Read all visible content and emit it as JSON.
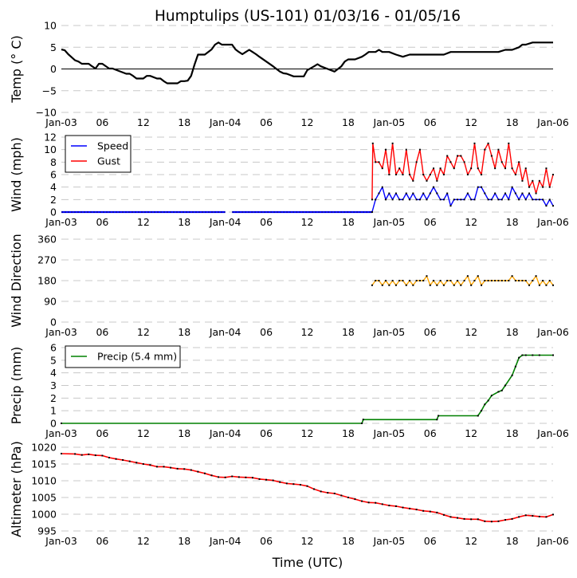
{
  "title": "Humptulips (US-101) 01/03/16 - 01/05/16",
  "xlabel": "Time (UTC)",
  "x_tick_labels": [
    "Jan-03",
    "06",
    "12",
    "18",
    "Jan-04",
    "06",
    "12",
    "18",
    "Jan-05",
    "06",
    "12",
    "18",
    "Jan-06"
  ],
  "colors": {
    "temp": "#000000",
    "speed": "#0000ff",
    "gust": "#ff0000",
    "direction": "#ffa500",
    "precip": "#008000",
    "altimeter": "#ff0000",
    "marker": "#000000",
    "grid": "#c8c8c8"
  },
  "chart_data": [
    {
      "type": "line",
      "id": "temp",
      "ylabel": "Temp ($^\\circ$C)",
      "ylabel_display": "Temp (° C)",
      "ylim": [
        -10,
        10
      ],
      "yticks": [
        -10,
        -5,
        0,
        5,
        10
      ],
      "ytick_labels": [
        "−10",
        "−5",
        "0",
        "5",
        "10"
      ],
      "xlim_hours": [
        0,
        72
      ],
      "zero_line": true,
      "series": [
        {
          "name": "Temperature",
          "x_hours": [
            0,
            0.5,
            1,
            1.5,
            2,
            2.5,
            3,
            4,
            4.5,
            5,
            5.5,
            6,
            7,
            7.5,
            8,
            9,
            9.5,
            10,
            10.5,
            11,
            12,
            12.5,
            13,
            14,
            14.5,
            15,
            15.5,
            16,
            17,
            17.5,
            18,
            18.5,
            19,
            19.5,
            20,
            20.5,
            21,
            22,
            22.5,
            23,
            23.5,
            24,
            24.5,
            25,
            25.5,
            26,
            26.5,
            27,
            27.5,
            28,
            28.5,
            29,
            30,
            31,
            31.5,
            32,
            32.5,
            33,
            34,
            35,
            35.5,
            36,
            37,
            37.5,
            38,
            39,
            40,
            41,
            41.5,
            42,
            43,
            44,
            44.5,
            45,
            46,
            46.5,
            47,
            47.5,
            48,
            49,
            50,
            51,
            52,
            53,
            54,
            55,
            56,
            57,
            58,
            59,
            60,
            61,
            62,
            63,
            64,
            65,
            65.5,
            66,
            67,
            67.5,
            68,
            69,
            70,
            71,
            72
          ],
          "values": [
            4.5,
            4.3,
            3.4,
            2.7,
            2.0,
            1.7,
            1.2,
            1.2,
            0.6,
            0.1,
            1.2,
            1.2,
            0.1,
            0.1,
            -0.2,
            -0.8,
            -1.1,
            -1.1,
            -1.6,
            -2.2,
            -2.2,
            -1.6,
            -1.6,
            -2.2,
            -2.2,
            -2.8,
            -3.3,
            -3.3,
            -3.3,
            -2.8,
            -2.8,
            -2.7,
            -1.6,
            1.0,
            3.3,
            3.3,
            3.3,
            4.5,
            5.6,
            6.1,
            5.6,
            5.6,
            5.6,
            5.6,
            4.5,
            3.9,
            3.4,
            3.9,
            4.4,
            3.9,
            3.4,
            2.8,
            1.7,
            0.6,
            0.0,
            -0.6,
            -1.0,
            -1.1,
            -1.7,
            -1.7,
            -1.7,
            -0.3,
            0.6,
            1.1,
            0.6,
            0.0,
            -0.6,
            0.6,
            1.7,
            2.2,
            2.2,
            2.8,
            3.3,
            3.9,
            3.9,
            4.4,
            3.9,
            3.9,
            3.9,
            3.3,
            2.8,
            3.3,
            3.3,
            3.3,
            3.3,
            3.3,
            3.3,
            3.9,
            3.9,
            3.9,
            3.9,
            3.9,
            3.9,
            3.9,
            3.9,
            4.4,
            4.4,
            4.4,
            5.0,
            5.6,
            5.6,
            6.1,
            6.1,
            6.1,
            6.1
          ]
        }
      ]
    },
    {
      "type": "line",
      "id": "wind",
      "ylabel": "Wind (mph)",
      "ylim": [
        0,
        12
      ],
      "yticks": [
        0,
        2,
        4,
        6,
        8,
        10,
        12
      ],
      "ytick_labels": [
        "0",
        "2",
        "4",
        "6",
        "8",
        "10",
        "12"
      ],
      "xlim_hours": [
        0,
        72
      ],
      "legend": {
        "position": "upper-left",
        "entries": [
          "Speed",
          "Gust"
        ]
      },
      "series": [
        {
          "name": "Speed",
          "segments": [
            {
              "x_hours": [
                0,
                24
              ],
              "values": [
                0,
                0
              ]
            },
            {
              "x_hours": [
                25,
                45.5
              ],
              "values": [
                0,
                0
              ]
            }
          ],
          "x_hours": [
            45.5,
            46,
            46.5,
            47,
            47.5,
            48,
            48.5,
            49,
            49.5,
            50,
            50.5,
            51,
            51.5,
            52,
            52.5,
            53,
            53.5,
            54,
            54.5,
            55,
            55.5,
            56,
            56.5,
            57,
            57.5,
            58,
            58.5,
            59,
            59.5,
            60,
            60.5,
            61,
            61.5,
            62,
            62.5,
            63,
            63.5,
            64,
            64.5,
            65,
            65.5,
            66,
            66.5,
            67,
            67.5,
            68,
            68.5,
            69,
            69.5,
            70,
            70.5,
            71,
            71.5,
            72
          ],
          "values": [
            0,
            2,
            3,
            4,
            2,
            3,
            2,
            3,
            2,
            2,
            3,
            2,
            3,
            2,
            2,
            3,
            2,
            3,
            4,
            3,
            2,
            2,
            3,
            1,
            2,
            2,
            2,
            2,
            3,
            2,
            2,
            4,
            4,
            3,
            2,
            2,
            3,
            2,
            2,
            3,
            2,
            4,
            3,
            2,
            3,
            2,
            3,
            2,
            2,
            2,
            2,
            1,
            2,
            1
          ]
        },
        {
          "name": "Gust",
          "x_hours": [
            45.5,
            45.6,
            46,
            46.5,
            47,
            47.5,
            48,
            48.5,
            49,
            49.5,
            50,
            50.5,
            51,
            51.5,
            52,
            52.5,
            53,
            53.5,
            54,
            54.5,
            55,
            55.5,
            56,
            56.5,
            57,
            57.5,
            58,
            58.5,
            59,
            59.5,
            60,
            60.5,
            61,
            61.5,
            62,
            62.5,
            63,
            63.5,
            64,
            64.5,
            65,
            65.5,
            66,
            66.5,
            67,
            67.5,
            68,
            68.5,
            69,
            69.5,
            70,
            70.5,
            71,
            71.5,
            72
          ],
          "values": [
            2,
            11,
            8,
            8,
            7,
            10,
            6,
            11,
            6,
            7,
            6,
            10,
            6,
            5,
            8,
            10,
            6,
            5,
            6,
            7,
            5,
            7,
            6,
            9,
            8,
            7,
            9,
            9,
            8,
            6,
            7,
            11,
            7,
            6,
            10,
            11,
            9,
            7,
            10,
            8,
            7,
            11,
            7,
            6,
            8,
            5,
            7,
            4,
            5,
            3,
            5,
            4,
            7,
            4,
            6
          ]
        }
      ]
    },
    {
      "type": "line",
      "id": "direction",
      "ylabel": "Wind Direction",
      "ylim": [
        0,
        360
      ],
      "yticks": [
        0,
        90,
        180,
        270,
        360
      ],
      "ytick_labels": [
        "0",
        "90",
        "180",
        "270",
        "360"
      ],
      "xlim_hours": [
        0,
        72
      ],
      "series": [
        {
          "name": "Direction",
          "x_hours": [
            45.5,
            46,
            46.5,
            47,
            47.5,
            48,
            48.5,
            49,
            49.5,
            50,
            50.5,
            51,
            51.5,
            52,
            52.5,
            53,
            53.5,
            54,
            54.5,
            55,
            55.5,
            56,
            56.5,
            57,
            57.5,
            58,
            58.5,
            59,
            59.5,
            60,
            60.5,
            61,
            61.5,
            62,
            62.5,
            63,
            63.5,
            64,
            64.5,
            65,
            65.5,
            66,
            66.5,
            67,
            67.5,
            68,
            68.5,
            69,
            69.5,
            70,
            70.5,
            71,
            71.5,
            72
          ],
          "values": [
            160,
            180,
            180,
            160,
            180,
            160,
            180,
            160,
            180,
            180,
            160,
            180,
            160,
            180,
            180,
            180,
            200,
            160,
            180,
            160,
            180,
            160,
            180,
            180,
            160,
            180,
            160,
            180,
            200,
            160,
            180,
            200,
            160,
            180,
            180,
            180,
            180,
            180,
            180,
            180,
            180,
            200,
            180,
            180,
            180,
            180,
            160,
            180,
            200,
            160,
            180,
            160,
            180,
            160
          ]
        }
      ]
    },
    {
      "type": "line",
      "id": "precip",
      "ylabel": "Precip (mm)",
      "ylim": [
        0,
        6
      ],
      "yticks": [
        0,
        1,
        2,
        3,
        4,
        5,
        6
      ],
      "ytick_labels": [
        "0",
        "1",
        "2",
        "3",
        "4",
        "5",
        "6"
      ],
      "xlim_hours": [
        0,
        72
      ],
      "legend": {
        "position": "upper-left",
        "entries": [
          "Precip (5.4 mm)"
        ]
      },
      "total_mm": 5.4,
      "series": [
        {
          "name": "Precip (5.4 mm)",
          "x_hours": [
            0,
            44,
            44.2,
            55,
            55.2,
            61,
            61.5,
            62,
            62.5,
            63,
            64,
            64.5,
            65,
            66,
            66.5,
            67,
            67.5,
            68,
            69,
            70,
            72
          ],
          "values": [
            0,
            0,
            0.3,
            0.3,
            0.6,
            0.6,
            1.0,
            1.5,
            1.8,
            2.2,
            2.5,
            2.6,
            3.0,
            3.8,
            4.5,
            5.2,
            5.4,
            5.4,
            5.4,
            5.4,
            5.4
          ]
        }
      ]
    },
    {
      "type": "line",
      "id": "altimeter",
      "ylabel": "Altimeter (hPa)",
      "ylim": [
        995,
        1020
      ],
      "yticks": [
        995,
        1000,
        1005,
        1010,
        1015,
        1020
      ],
      "ytick_labels": [
        "995",
        "1000",
        "1005",
        "1010",
        "1015",
        "1020"
      ],
      "xlim_hours": [
        0,
        72
      ],
      "series": [
        {
          "name": "Altimeter",
          "x_hours": [
            0,
            2,
            3,
            4,
            5,
            6,
            7,
            8,
            9,
            10,
            11,
            12,
            13,
            14,
            15,
            16,
            17,
            18,
            19,
            20,
            21,
            22,
            23,
            24,
            25,
            26,
            27,
            28,
            29,
            30,
            31,
            32,
            33,
            34,
            35,
            36,
            37,
            38,
            39,
            40,
            41,
            42,
            43,
            44,
            45,
            46,
            47,
            48,
            49,
            50,
            51,
            52,
            53,
            54,
            55,
            56,
            57,
            58,
            59,
            60,
            61,
            62,
            63,
            64,
            65,
            66,
            67,
            68,
            69,
            70,
            71,
            72
          ],
          "values": [
            1018.1,
            1018.0,
            1017.7,
            1017.9,
            1017.6,
            1017.5,
            1016.9,
            1016.5,
            1016.2,
            1015.8,
            1015.4,
            1015.0,
            1014.7,
            1014.2,
            1014.2,
            1013.9,
            1013.6,
            1013.5,
            1013.2,
            1012.7,
            1012.2,
            1011.6,
            1011.1,
            1011.0,
            1011.3,
            1011.1,
            1011.0,
            1010.9,
            1010.5,
            1010.3,
            1010.1,
            1009.6,
            1009.2,
            1009.0,
            1008.8,
            1008.4,
            1007.5,
            1006.8,
            1006.4,
            1006.2,
            1005.6,
            1005.0,
            1004.5,
            1003.9,
            1003.5,
            1003.4,
            1003.0,
            1002.6,
            1002.4,
            1002.0,
            1001.7,
            1001.4,
            1001.0,
            1000.8,
            1000.5,
            999.8,
            999.2,
            998.9,
            998.6,
            998.5,
            998.5,
            997.9,
            997.8,
            997.9,
            998.3,
            998.6,
            999.2,
            999.7,
            999.5,
            999.3,
            999.2,
            999.9
          ]
        }
      ]
    }
  ]
}
